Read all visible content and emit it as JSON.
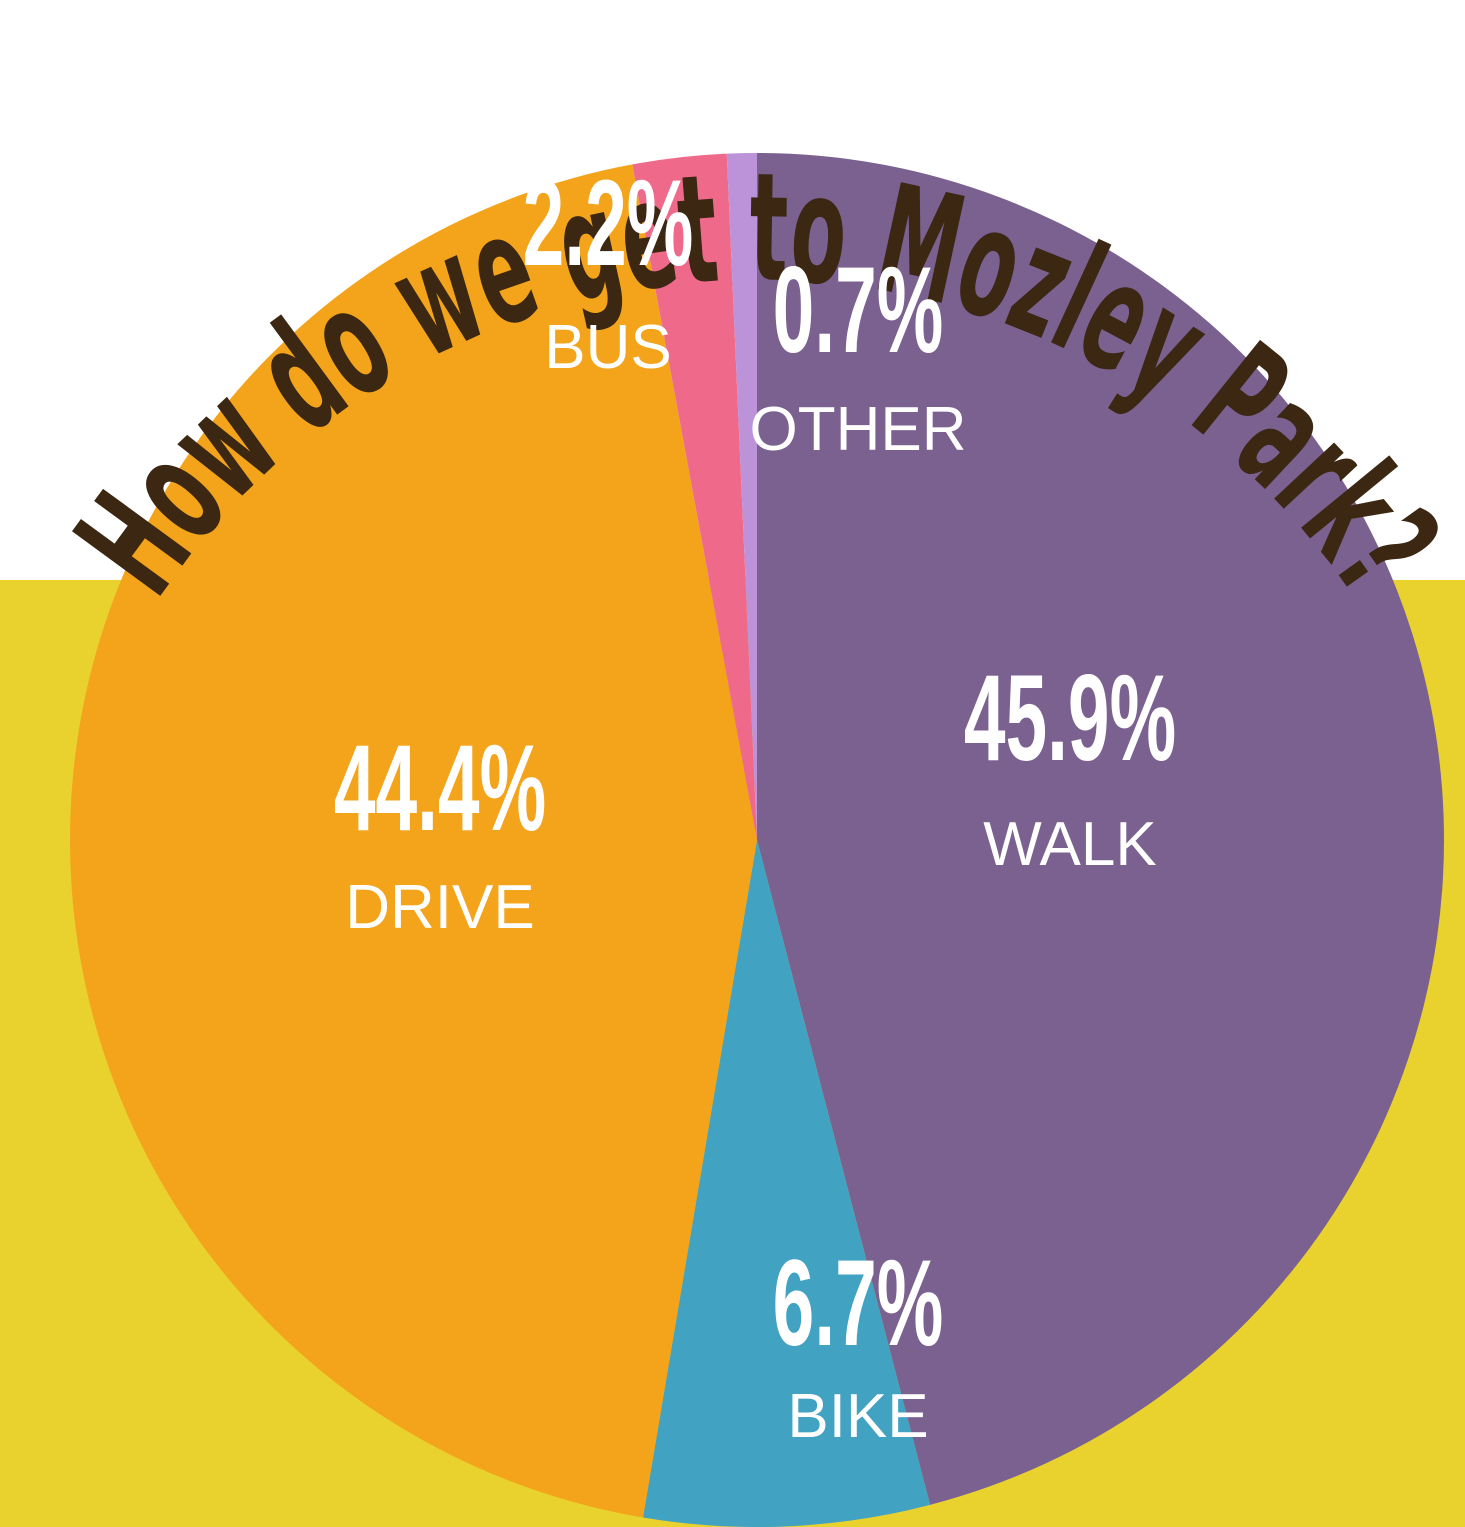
{
  "chart_data": {
    "type": "pie",
    "title": "How do we get to Mozley Park?",
    "categories": [
      "WALK",
      "BIKE",
      "DRIVE",
      "BUS",
      "OTHER"
    ],
    "values": [
      45.9,
      6.7,
      44.4,
      2.2,
      0.7
    ],
    "value_labels": [
      "45.9%",
      "6.7%",
      "44.4%",
      "2.2%",
      "0.7%"
    ],
    "colors": [
      "#7b6190",
      "#41a2c2",
      "#f3a41b",
      "#ef6a8a",
      "#bc93d9"
    ]
  }
}
